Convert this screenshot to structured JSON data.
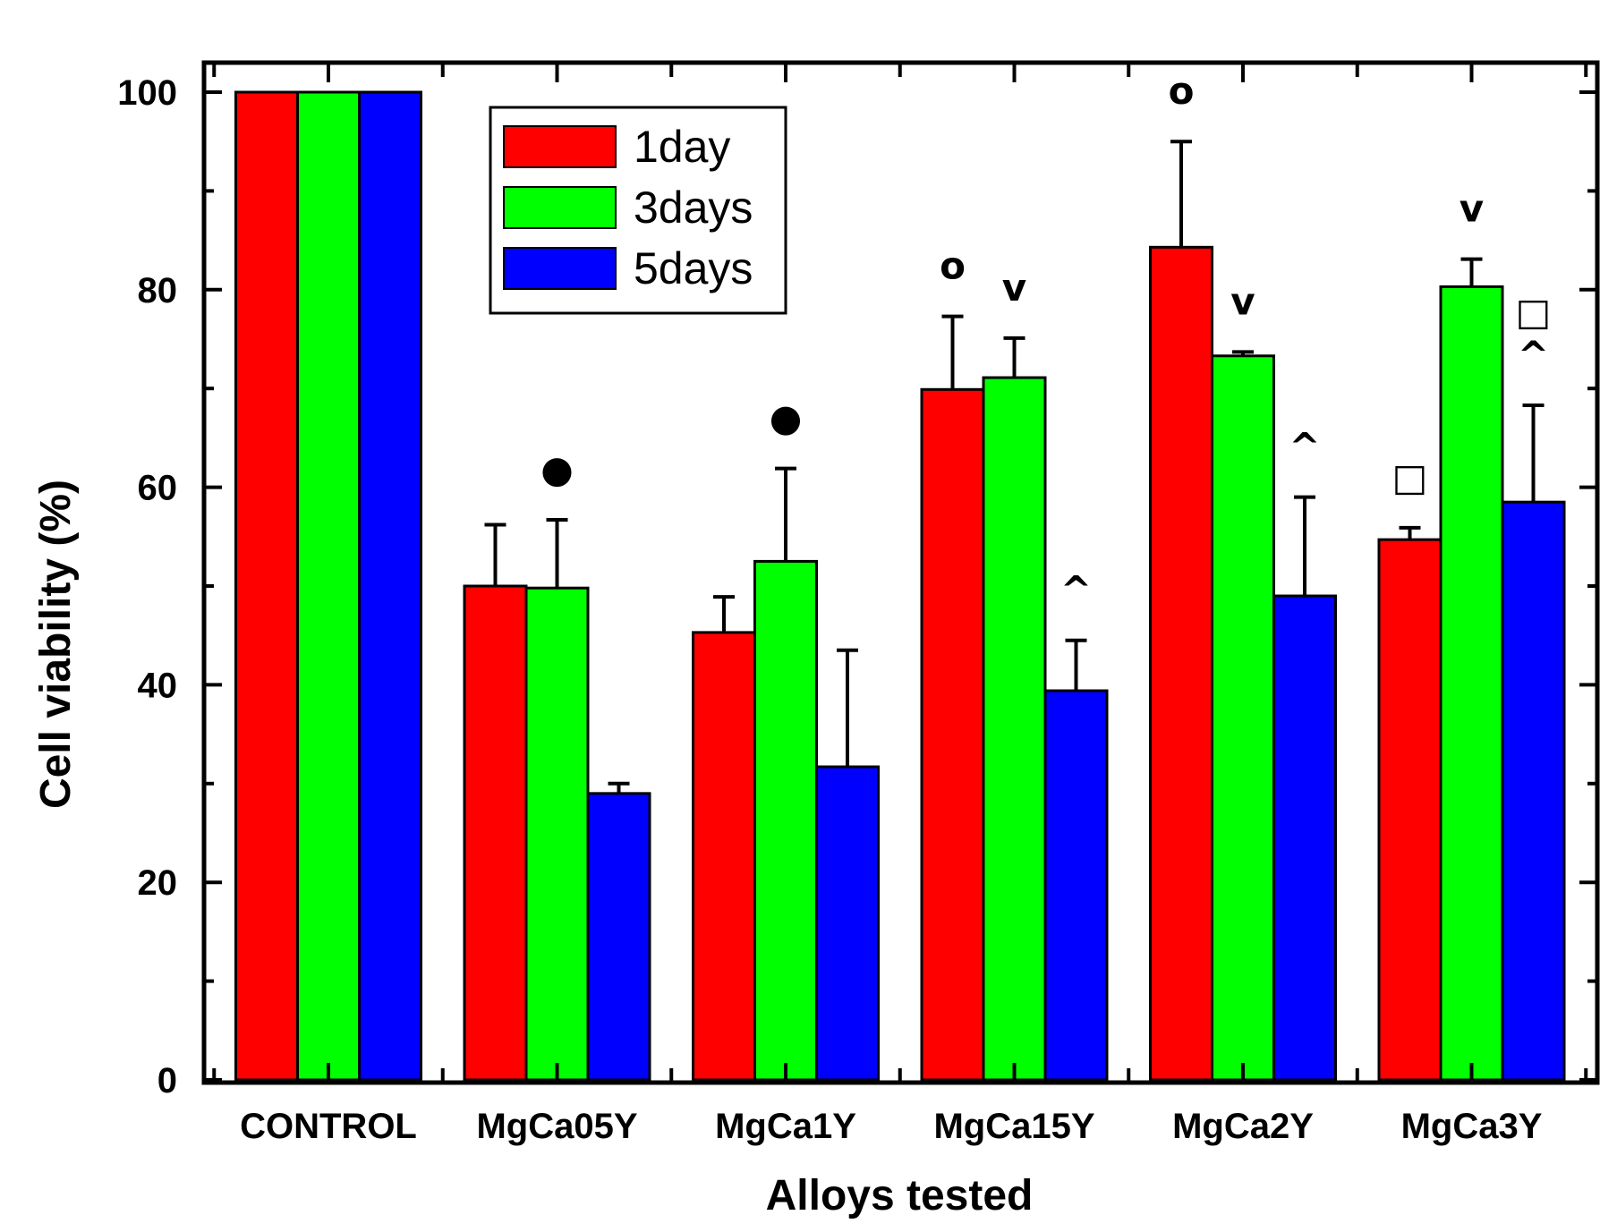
{
  "chart_data": {
    "type": "bar",
    "title": "",
    "xlabel": "Alloys tested",
    "ylabel": "Cell viability (%)",
    "ylim": [
      0,
      100
    ],
    "yticks": [
      0,
      20,
      40,
      60,
      80,
      100
    ],
    "categories": [
      "CONTROL",
      "MgCa05Y",
      "MgCa1Y",
      "MgCa15Y",
      "MgCa2Y",
      "MgCa3Y"
    ],
    "series": [
      {
        "name": "1day",
        "color": "#ff0000",
        "values": [
          100,
          50,
          45.3,
          69.9,
          84.3,
          54.7
        ],
        "errors": [
          0,
          6.2,
          3.6,
          7.4,
          10.7,
          1.2
        ]
      },
      {
        "name": "3days",
        "color": "#00ff00",
        "values": [
          100,
          49.8,
          52.5,
          71.1,
          73.3,
          80.3
        ],
        "errors": [
          0,
          6.9,
          9.4,
          4.0,
          0.4,
          2.8
        ]
      },
      {
        "name": "5days",
        "color": "#0000ff",
        "values": [
          100,
          29,
          31.7,
          39.4,
          49,
          58.5
        ],
        "errors": [
          0,
          1.0,
          11.8,
          5.1,
          10.0,
          9.8
        ]
      }
    ],
    "annotations": [
      {
        "category": "MgCa05Y",
        "series": "3days",
        "symbol": "●"
      },
      {
        "category": "MgCa1Y",
        "series": "3days",
        "symbol": "●"
      },
      {
        "category": "MgCa15Y",
        "series": "1day",
        "symbol": "o"
      },
      {
        "category": "MgCa15Y",
        "series": "3days",
        "symbol": "v"
      },
      {
        "category": "MgCa15Y",
        "series": "5days",
        "symbol": "^"
      },
      {
        "category": "MgCa2Y",
        "series": "1day",
        "symbol": "o"
      },
      {
        "category": "MgCa2Y",
        "series": "3days",
        "symbol": "v"
      },
      {
        "category": "MgCa2Y",
        "series": "5days",
        "symbol": "^"
      },
      {
        "category": "MgCa3Y",
        "series": "1day",
        "symbol": "□"
      },
      {
        "category": "MgCa3Y",
        "series": "3days",
        "symbol": "v"
      },
      {
        "category": "MgCa3Y",
        "series": "5days",
        "symbol": "□^"
      }
    ],
    "legend_position": "top-left inside plot",
    "grid": false
  }
}
